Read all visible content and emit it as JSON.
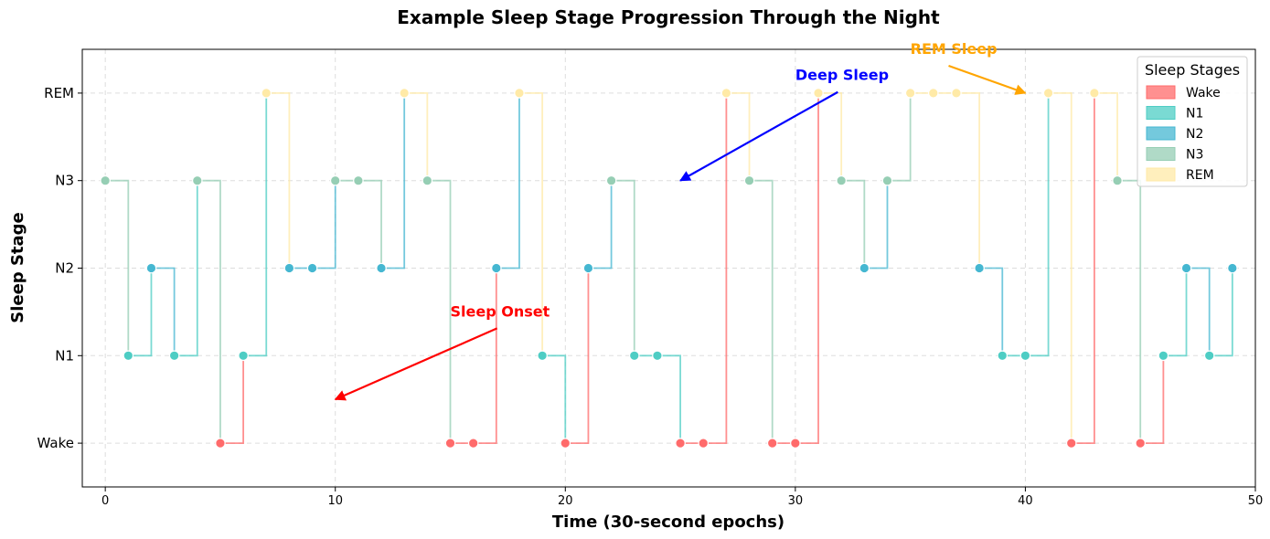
{
  "chart_data": {
    "type": "line",
    "title": "Example Sleep Stage Progression Through the Night",
    "xlabel": "Time (30-second epochs)",
    "ylabel": "Sleep Stage",
    "xlim": [
      -1,
      50
    ],
    "ylim": [
      -0.5,
      4.5
    ],
    "x_ticks": [
      0,
      10,
      20,
      30,
      40,
      50
    ],
    "y_ticks": [
      {
        "value": 0,
        "label": "Wake"
      },
      {
        "value": 1,
        "label": "N1"
      },
      {
        "value": 2,
        "label": "N2"
      },
      {
        "value": 3,
        "label": "N3"
      },
      {
        "value": 4,
        "label": "REM"
      }
    ],
    "grid": true,
    "step_style": "post",
    "colors": {
      "Wake": "#FF6B6B",
      "N1": "#4ECDC4",
      "N2": "#45B7D1",
      "N3": "#96CEB4",
      "REM": "#FFEAA7"
    },
    "epochs": [
      "N3",
      "N1",
      "N2",
      "N1",
      "N3",
      "Wake",
      "N1",
      "REM",
      "N2",
      "N2",
      "N3",
      "N3",
      "N2",
      "REM",
      "N3",
      "Wake",
      "Wake",
      "N2",
      "REM",
      "N1",
      "Wake",
      "N2",
      "N3",
      "N1",
      "N1",
      "Wake",
      "Wake",
      "REM",
      "N3",
      "Wake",
      "Wake",
      "REM",
      "N3",
      "N2",
      "N3",
      "REM",
      "REM",
      "REM",
      "N2",
      "N1",
      "N1",
      "REM",
      "Wake",
      "REM",
      "N3",
      "Wake",
      "N1",
      "N2",
      "N1",
      "N2"
    ],
    "legend": {
      "title": "Sleep Stages",
      "position": "top-right",
      "entries": [
        "Wake",
        "N1",
        "N2",
        "N3",
        "REM"
      ]
    },
    "annotations": [
      {
        "text": "Sleep Onset",
        "color": "#FF0000",
        "target": [
          10,
          0.5
        ],
        "text_at": [
          15,
          1.5
        ]
      },
      {
        "text": "Deep Sleep",
        "color": "#0000FF",
        "target": [
          25,
          3
        ],
        "text_at": [
          30,
          4.2
        ]
      },
      {
        "text": "REM Sleep",
        "color": "#FFA500",
        "target": [
          40,
          4
        ],
        "text_at": [
          35,
          4.5
        ]
      }
    ]
  }
}
